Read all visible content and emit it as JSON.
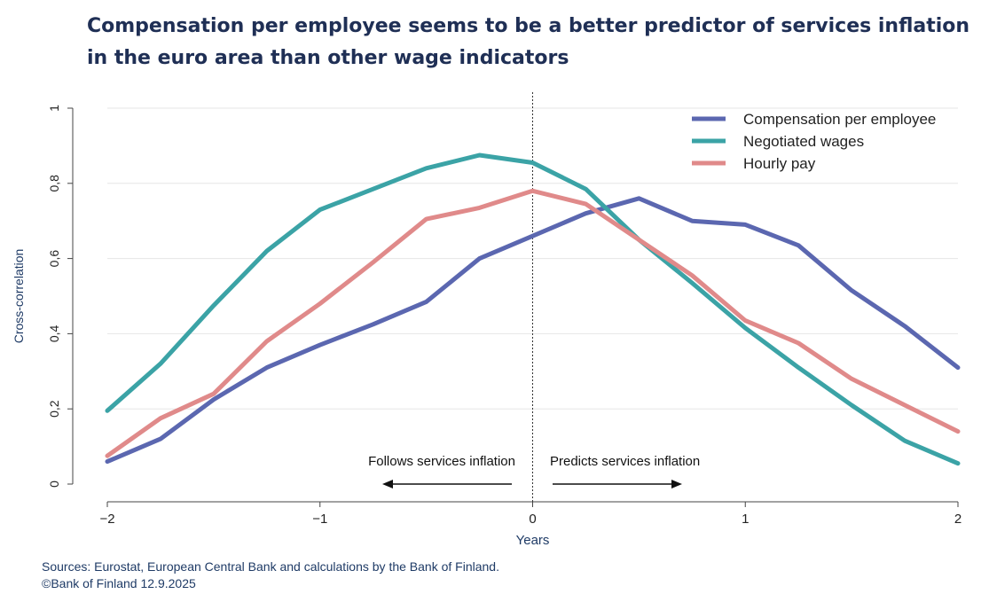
{
  "title_line1": "Compensation per employee seems to be a better predictor of services inflation",
  "title_line2": "in the euro area than other wage indicators",
  "sources_line": "Sources: Eurostat, European Central Bank and calculations by the Bank of Finland.",
  "copyright_line": "©Bank of Finland 12.9.2025",
  "chart_data": {
    "type": "line",
    "xlabel": "Years",
    "ylabel": "Cross-correlation",
    "xlim": [
      -2,
      2
    ],
    "ylim": [
      0,
      1
    ],
    "x_ticks": [
      -2,
      -1,
      0,
      1,
      2
    ],
    "x_tick_labels": [
      "−2",
      "−1",
      "0",
      "1",
      "2"
    ],
    "y_ticks": [
      0,
      0.2,
      0.4,
      0.6,
      0.8,
      1
    ],
    "y_tick_labels": [
      "0",
      "0,2",
      "0,4",
      "0,6",
      "0,8",
      "1"
    ],
    "grid": true,
    "legend_position": "top-right",
    "vertical_reference_line_x": 0,
    "x": [
      -2,
      -1.75,
      -1.5,
      -1.25,
      -1,
      -0.75,
      -0.5,
      -0.25,
      0,
      0.25,
      0.5,
      0.75,
      1,
      1.25,
      1.5,
      1.75,
      2
    ],
    "series": [
      {
        "name": "Compensation per employee",
        "color": "#5b67b0",
        "values": [
          0.06,
          0.12,
          0.225,
          0.31,
          0.37,
          0.425,
          0.485,
          0.6,
          0.66,
          0.72,
          0.76,
          0.7,
          0.69,
          0.635,
          0.515,
          0.42,
          0.31
        ]
      },
      {
        "name": "Negotiated wages",
        "color": "#3ba3a6",
        "values": [
          0.195,
          0.32,
          0.475,
          0.62,
          0.73,
          0.785,
          0.84,
          0.875,
          0.855,
          0.785,
          0.65,
          0.535,
          0.415,
          0.31,
          0.21,
          0.115,
          0.055
        ]
      },
      {
        "name": "Hourly pay",
        "color": "#e08a8a",
        "values": [
          0.075,
          0.175,
          0.24,
          0.38,
          0.48,
          0.59,
          0.705,
          0.735,
          0.78,
          0.745,
          0.65,
          0.555,
          0.435,
          0.375,
          0.28,
          0.21,
          0.14
        ]
      }
    ],
    "annotations": {
      "left_text": "Follows services inflation",
      "right_text": "Predicts services inflation"
    }
  }
}
